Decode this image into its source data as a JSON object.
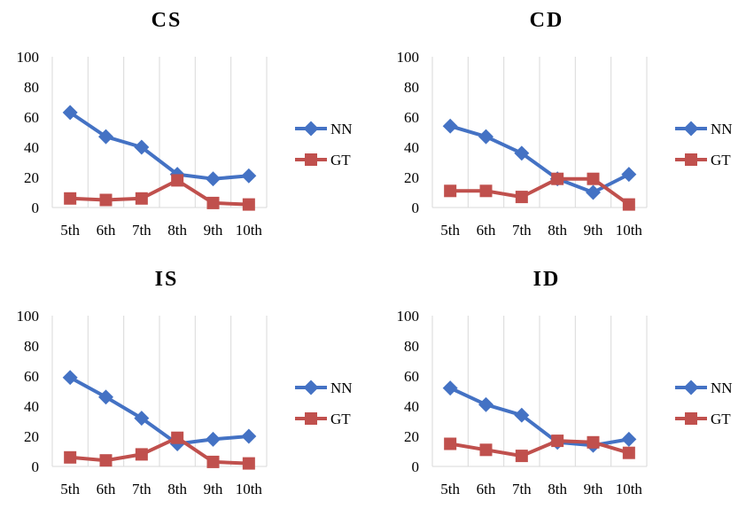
{
  "colors": {
    "NN": "#4472c4",
    "GT": "#c0504d"
  },
  "chart_data": [
    {
      "type": "line",
      "title": "CS",
      "categories": [
        "5th",
        "6th",
        "7th",
        "8th",
        "9th",
        "10th"
      ],
      "ylim": [
        0,
        100
      ],
      "yticks": [
        "0",
        "20",
        "40",
        "60",
        "80",
        "100"
      ],
      "grid": "vertical category gridlines",
      "legend": "right",
      "series": [
        {
          "name": "NN",
          "values": [
            63,
            47,
            40,
            22,
            19,
            21
          ]
        },
        {
          "name": "GT",
          "values": [
            6,
            5,
            6,
            18,
            3,
            2
          ]
        }
      ]
    },
    {
      "type": "line",
      "title": "CD",
      "categories": [
        "5th",
        "6th",
        "7th",
        "8th",
        "9th",
        "10th"
      ],
      "ylim": [
        0,
        100
      ],
      "yticks": [
        "0",
        "20",
        "40",
        "60",
        "80",
        "100"
      ],
      "grid": "vertical category gridlines",
      "legend": "right",
      "series": [
        {
          "name": "NN",
          "values": [
            54,
            47,
            36,
            19,
            10,
            22
          ]
        },
        {
          "name": "GT",
          "values": [
            11,
            11,
            7,
            19,
            19,
            2
          ]
        }
      ]
    },
    {
      "type": "line",
      "title": "IS",
      "categories": [
        "5th",
        "6th",
        "7th",
        "8th",
        "9th",
        "10th"
      ],
      "ylim": [
        0,
        100
      ],
      "yticks": [
        "0",
        "20",
        "40",
        "60",
        "80",
        "100"
      ],
      "grid": "vertical category gridlines",
      "legend": "right",
      "series": [
        {
          "name": "NN",
          "values": [
            59,
            46,
            32,
            15,
            18,
            20
          ]
        },
        {
          "name": "GT",
          "values": [
            6,
            4,
            8,
            19,
            3,
            2
          ]
        }
      ]
    },
    {
      "type": "line",
      "title": "ID",
      "categories": [
        "5th",
        "6th",
        "7th",
        "8th",
        "9th",
        "10th"
      ],
      "ylim": [
        0,
        100
      ],
      "yticks": [
        "0",
        "20",
        "40",
        "60",
        "80",
        "100"
      ],
      "grid": "vertical category gridlines",
      "legend": "right",
      "series": [
        {
          "name": "NN",
          "values": [
            52,
            41,
            34,
            16,
            14,
            18
          ]
        },
        {
          "name": "GT",
          "values": [
            15,
            11,
            7,
            17,
            16,
            9
          ]
        }
      ]
    }
  ]
}
